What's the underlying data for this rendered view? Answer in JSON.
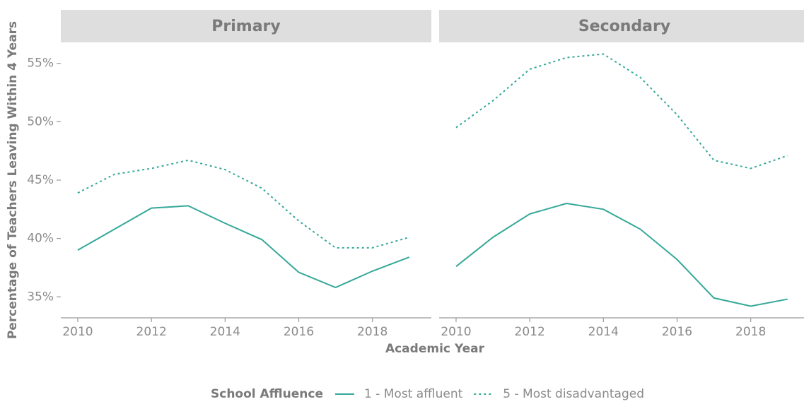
{
  "chart_data": {
    "type": "line",
    "ylabel": "Percentage of Teachers Leaving Within 4 Years",
    "xlabel": "Academic Year",
    "legend_title": "School Affluence",
    "x": [
      2010,
      2011,
      2012,
      2013,
      2014,
      2015,
      2016,
      2017,
      2018,
      2019
    ],
    "xlim": [
      2009.54,
      2019.6
    ],
    "xticks": [
      2010,
      2012,
      2014,
      2016,
      2018
    ],
    "ylim": [
      33.2,
      56.8
    ],
    "yticks": [
      {
        "value": 35,
        "label": "35%"
      },
      {
        "value": 40,
        "label": "40%"
      },
      {
        "value": 45,
        "label": "45%"
      },
      {
        "value": 50,
        "label": "50%"
      },
      {
        "value": 55,
        "label": "55%"
      }
    ],
    "series": [
      {
        "name": "1 - Most affluent",
        "color": "#35a899",
        "dash": "none"
      },
      {
        "name": "5 - Most disadvantaged",
        "color": "#35a899",
        "dash": "3,4"
      }
    ],
    "facets": [
      {
        "title": "Primary",
        "series": [
          {
            "values": [
              39.0,
              40.8,
              42.6,
              42.8,
              41.3,
              39.9,
              37.1,
              35.8,
              37.2,
              38.4
            ]
          },
          {
            "values": [
              43.9,
              45.5,
              46.0,
              46.7,
              45.9,
              44.3,
              41.5,
              39.2,
              39.2,
              40.1
            ]
          }
        ]
      },
      {
        "title": "Secondary",
        "series": [
          {
            "values": [
              37.6,
              40.1,
              42.1,
              43.0,
              42.5,
              40.8,
              38.2,
              34.9,
              34.2,
              34.8
            ]
          },
          {
            "values": [
              49.5,
              51.8,
              54.5,
              55.5,
              55.8,
              53.8,
              50.6,
              46.7,
              46.0,
              47.1
            ]
          }
        ]
      }
    ]
  }
}
